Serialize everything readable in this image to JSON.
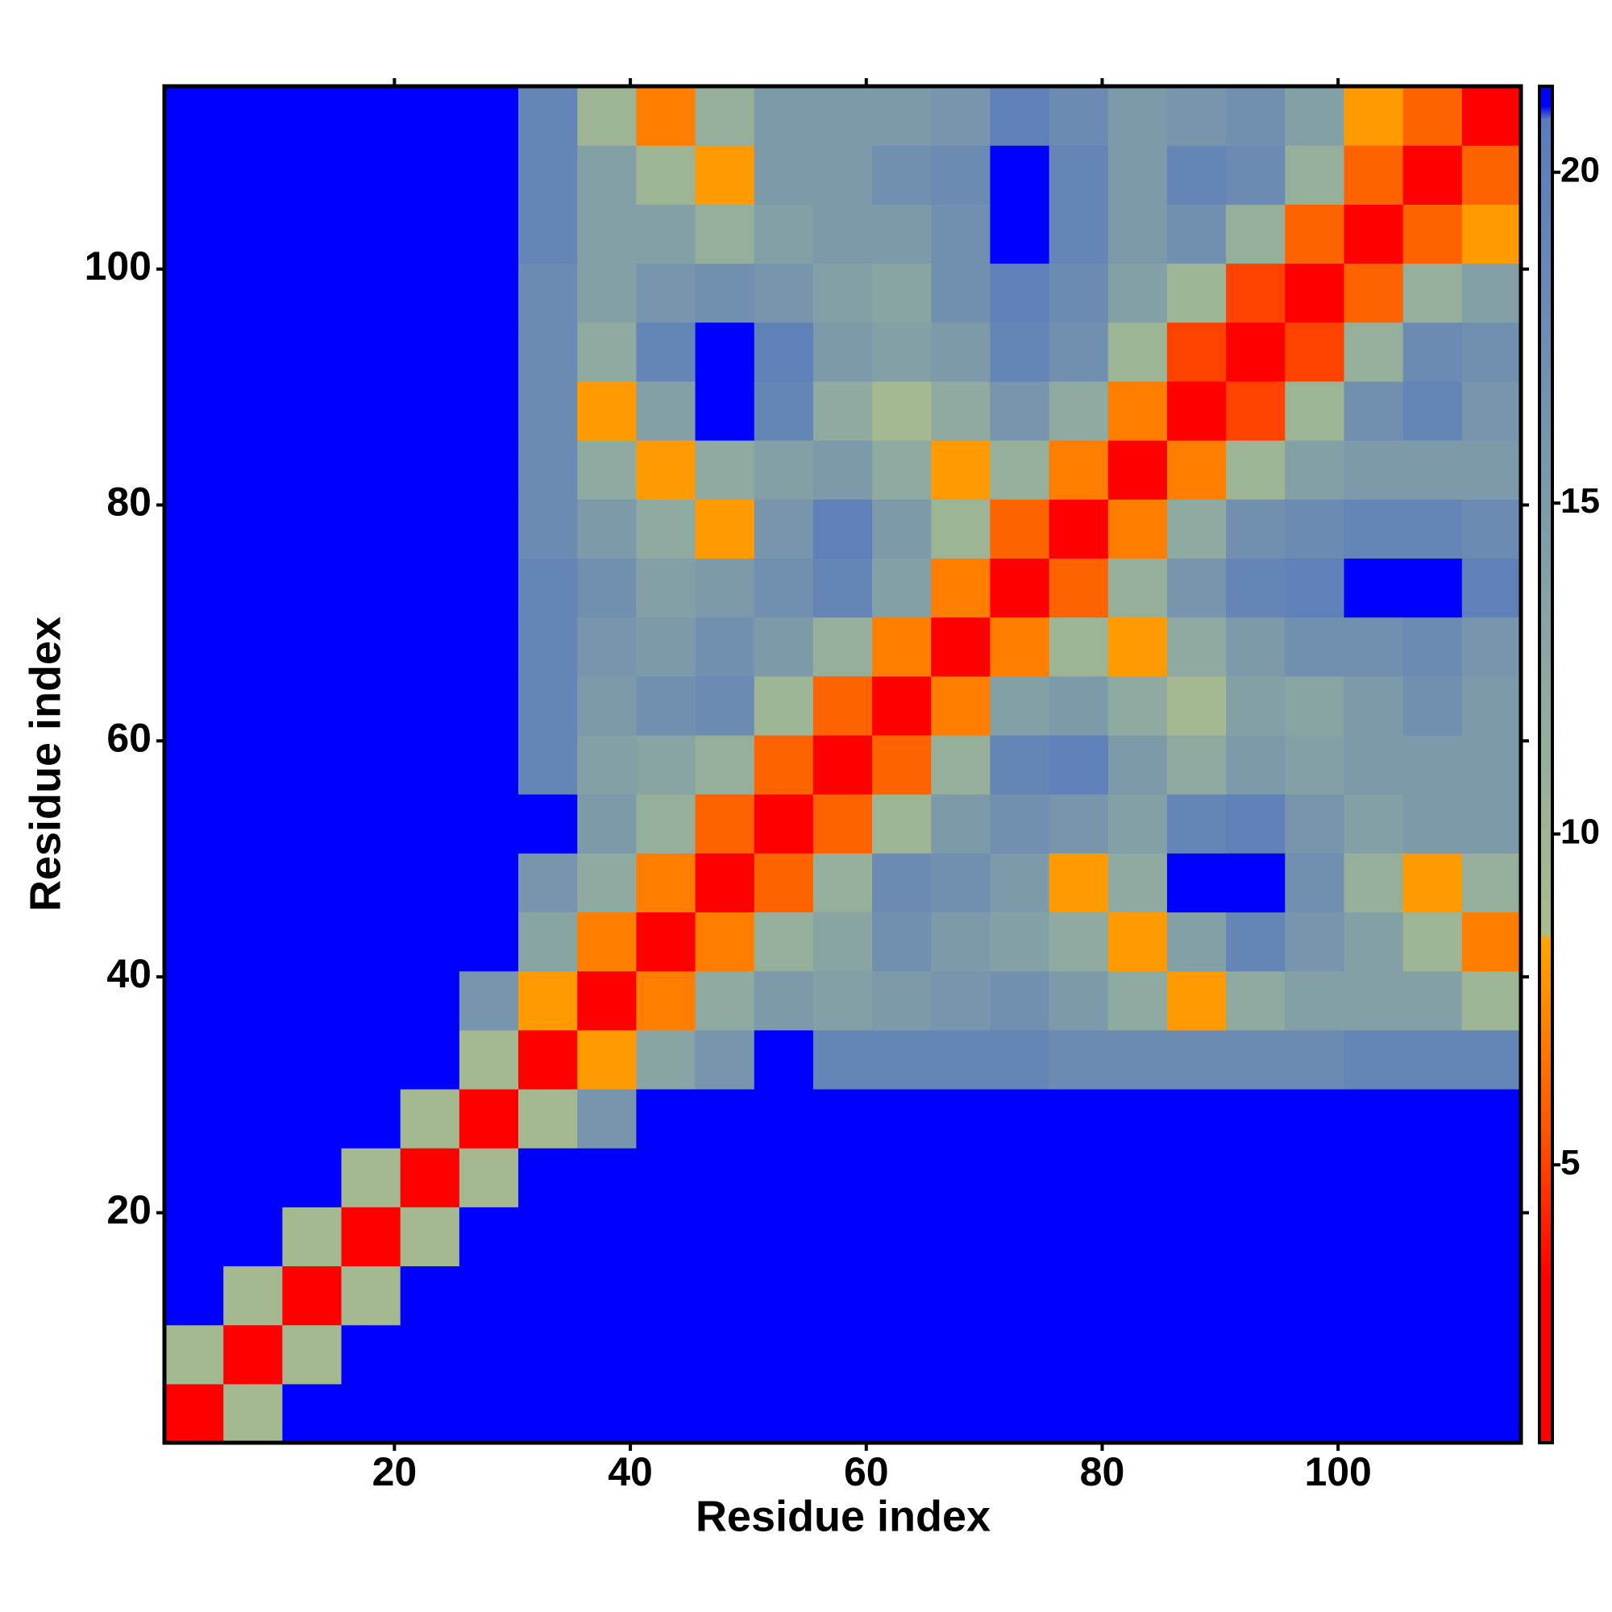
{
  "chart_data": {
    "type": "heatmap",
    "xlabel": "Residue index",
    "ylabel": "Residue index",
    "xlim": [
      0.5,
      115.5
    ],
    "ylim": [
      0.5,
      115.5
    ],
    "xticks": [
      20,
      40,
      60,
      80,
      100
    ],
    "yticks": [
      20,
      40,
      60,
      80,
      100
    ],
    "x_bins": [
      0.5,
      5.5,
      10.5,
      15.5,
      20.5,
      25.5,
      30.5,
      35.5,
      40.5,
      45.5,
      50.5,
      55.5,
      60.5,
      65.5,
      70.5,
      75.5,
      80.5,
      85.5,
      90.5,
      95.5,
      100.5,
      105.5,
      110.5,
      115.5
    ],
    "y_bins": [
      0.5,
      5.5,
      10.5,
      15.5,
      20.5,
      25.5,
      30.5,
      35.5,
      40.5,
      45.5,
      50.5,
      55.5,
      60.5,
      65.5,
      70.5,
      75.5,
      80.5,
      85.5,
      90.5,
      95.5,
      100.5,
      105.5,
      110.5,
      115.5
    ],
    "z": [
      [
        2,
        9,
        21.5,
        21.5,
        21.5,
        21.5,
        21.5,
        21.5,
        21.5,
        21.5,
        21.5,
        21.5,
        21.5,
        21.5,
        21.5,
        21.5,
        21.5,
        21.5,
        21.5,
        21.5,
        21.5,
        21.5,
        21.5
      ],
      [
        9,
        2,
        9,
        21.5,
        21.5,
        21.5,
        21.5,
        21.5,
        21.5,
        21.5,
        21.5,
        21.5,
        21.5,
        21.5,
        21.5,
        21.5,
        21.5,
        21.5,
        21.5,
        21.5,
        21.5,
        21.5,
        21.5
      ],
      [
        21.5,
        9,
        2,
        9,
        21.5,
        21.5,
        21.5,
        21.5,
        21.5,
        21.5,
        21.5,
        21.5,
        21.5,
        21.5,
        21.5,
        21.5,
        21.5,
        21.5,
        21.5,
        21.5,
        21.5,
        21.5,
        21.5
      ],
      [
        21.5,
        21.5,
        9,
        2,
        9,
        21.5,
        21.5,
        21.5,
        21.5,
        21.5,
        21.5,
        21.5,
        21.5,
        21.5,
        21.5,
        21.5,
        21.5,
        21.5,
        21.5,
        21.5,
        21.5,
        21.5,
        21.5
      ],
      [
        21.5,
        21.5,
        21.5,
        9,
        2,
        9,
        21.5,
        21.5,
        21.5,
        21.5,
        21.5,
        21.5,
        21.5,
        21.5,
        21.5,
        21.5,
        21.5,
        21.5,
        21.5,
        21.5,
        21.5,
        21.5,
        21.5
      ],
      [
        21.5,
        21.5,
        21.5,
        21.5,
        9,
        2,
        9,
        16,
        21.5,
        21.5,
        21.5,
        21.5,
        21.5,
        21.5,
        21.5,
        21.5,
        21.5,
        21.5,
        21.5,
        21.5,
        21.5,
        21.5,
        21.5
      ],
      [
        21.5,
        21.5,
        21.5,
        21.5,
        21.5,
        9,
        2,
        8,
        13,
        16,
        21.5,
        19,
        19,
        19,
        19,
        18,
        18,
        18,
        18,
        18,
        19,
        19,
        19
      ],
      [
        21.5,
        21.5,
        21.5,
        21.5,
        21.5,
        16,
        8,
        2,
        7,
        12,
        15,
        14,
        15,
        16,
        17,
        15,
        12,
        8,
        12,
        14,
        14,
        14,
        10
      ],
      [
        21.5,
        21.5,
        21.5,
        21.5,
        21.5,
        21.5,
        13,
        7,
        2,
        7,
        11,
        13,
        17,
        15,
        14,
        12,
        8,
        14,
        19,
        16,
        14,
        10,
        7
      ],
      [
        21.5,
        21.5,
        21.5,
        21.5,
        21.5,
        21.5,
        16,
        12,
        7,
        2,
        6,
        11,
        18,
        17,
        15,
        8,
        12,
        21.5,
        21.5,
        17,
        11,
        8,
        11
      ],
      [
        21.5,
        21.5,
        21.5,
        21.5,
        21.5,
        21.5,
        21.5,
        15,
        11,
        6,
        2,
        6,
        10,
        15,
        17,
        16,
        14,
        19,
        20,
        16,
        14,
        15,
        15
      ],
      [
        21.5,
        21.5,
        21.5,
        21.5,
        21.5,
        21.5,
        19,
        14,
        13,
        11,
        6,
        2,
        6,
        11,
        19,
        20,
        15,
        12,
        15,
        14,
        15,
        15,
        15
      ],
      [
        21.5,
        21.5,
        21.5,
        21.5,
        21.5,
        21.5,
        19,
        15,
        17,
        18,
        10,
        6,
        2,
        7,
        14,
        15,
        12,
        9,
        14,
        13,
        15,
        17,
        15
      ],
      [
        21.5,
        21.5,
        21.5,
        21.5,
        21.5,
        21.5,
        19,
        16,
        15,
        17,
        15,
        11,
        7,
        2,
        7,
        10,
        8,
        12,
        15,
        17,
        17,
        18,
        16
      ],
      [
        21.5,
        21.5,
        21.5,
        21.5,
        21.5,
        21.5,
        19,
        17,
        14,
        15,
        17,
        19,
        14,
        7,
        2,
        6,
        11,
        16,
        19,
        20,
        21.5,
        21.5,
        20
      ],
      [
        21.5,
        21.5,
        21.5,
        21.5,
        21.5,
        21.5,
        18,
        15,
        12,
        8,
        16,
        20,
        15,
        10,
        6,
        2,
        7,
        12,
        17,
        18,
        19,
        19,
        18
      ],
      [
        21.5,
        21.5,
        21.5,
        21.5,
        21.5,
        21.5,
        18,
        12,
        8,
        12,
        14,
        15,
        12,
        8,
        11,
        7,
        2,
        7,
        10,
        14,
        15,
        15,
        15
      ],
      [
        21.5,
        21.5,
        21.5,
        21.5,
        21.5,
        21.5,
        18,
        8,
        14,
        21.5,
        19,
        12,
        9,
        12,
        16,
        12,
        7,
        2,
        5,
        10,
        17,
        19,
        16
      ],
      [
        21.5,
        21.5,
        21.5,
        21.5,
        21.5,
        21.5,
        18,
        12,
        19,
        21.5,
        20,
        15,
        14,
        15,
        19,
        17,
        10,
        5,
        2,
        5,
        11,
        18,
        17
      ],
      [
        21.5,
        21.5,
        21.5,
        21.5,
        21.5,
        21.5,
        18,
        14,
        16,
        17,
        16,
        14,
        13,
        17,
        20,
        18,
        14,
        10,
        5,
        2,
        6,
        11,
        14
      ],
      [
        21.5,
        21.5,
        21.5,
        21.5,
        21.5,
        21.5,
        19,
        14,
        14,
        11,
        14,
        15,
        15,
        17,
        21.5,
        19,
        15,
        17,
        11,
        6,
        2,
        6,
        8
      ],
      [
        21.5,
        21.5,
        21.5,
        21.5,
        21.5,
        21.5,
        19,
        14,
        10,
        8,
        15,
        15,
        17,
        18,
        21.5,
        19,
        15,
        19,
        18,
        11,
        6,
        2,
        6
      ],
      [
        21.5,
        21.5,
        21.5,
        21.5,
        21.5,
        21.5,
        19,
        10,
        7,
        11,
        15,
        15,
        15,
        16,
        20,
        18,
        15,
        16,
        17,
        14,
        8,
        6,
        2
      ]
    ],
    "colorbar": {
      "lim": [
        0.8,
        21.3
      ],
      "ticks": [
        5,
        10,
        15,
        20
      ],
      "stops": [
        {
          "value": 0.8,
          "color": "#ff0000"
        },
        {
          "value": 3.3,
          "color": "#ff0000"
        },
        {
          "value": 5.5,
          "color": "#ff5500"
        },
        {
          "value": 8.4,
          "color": "#ffa500"
        },
        {
          "value": 8.5,
          "color": "#a8bc8c"
        },
        {
          "value": 12,
          "color": "#8faaa0"
        },
        {
          "value": 20.8,
          "color": "#5a7cbc"
        },
        {
          "value": 21,
          "color": "#0000ff"
        }
      ]
    }
  }
}
